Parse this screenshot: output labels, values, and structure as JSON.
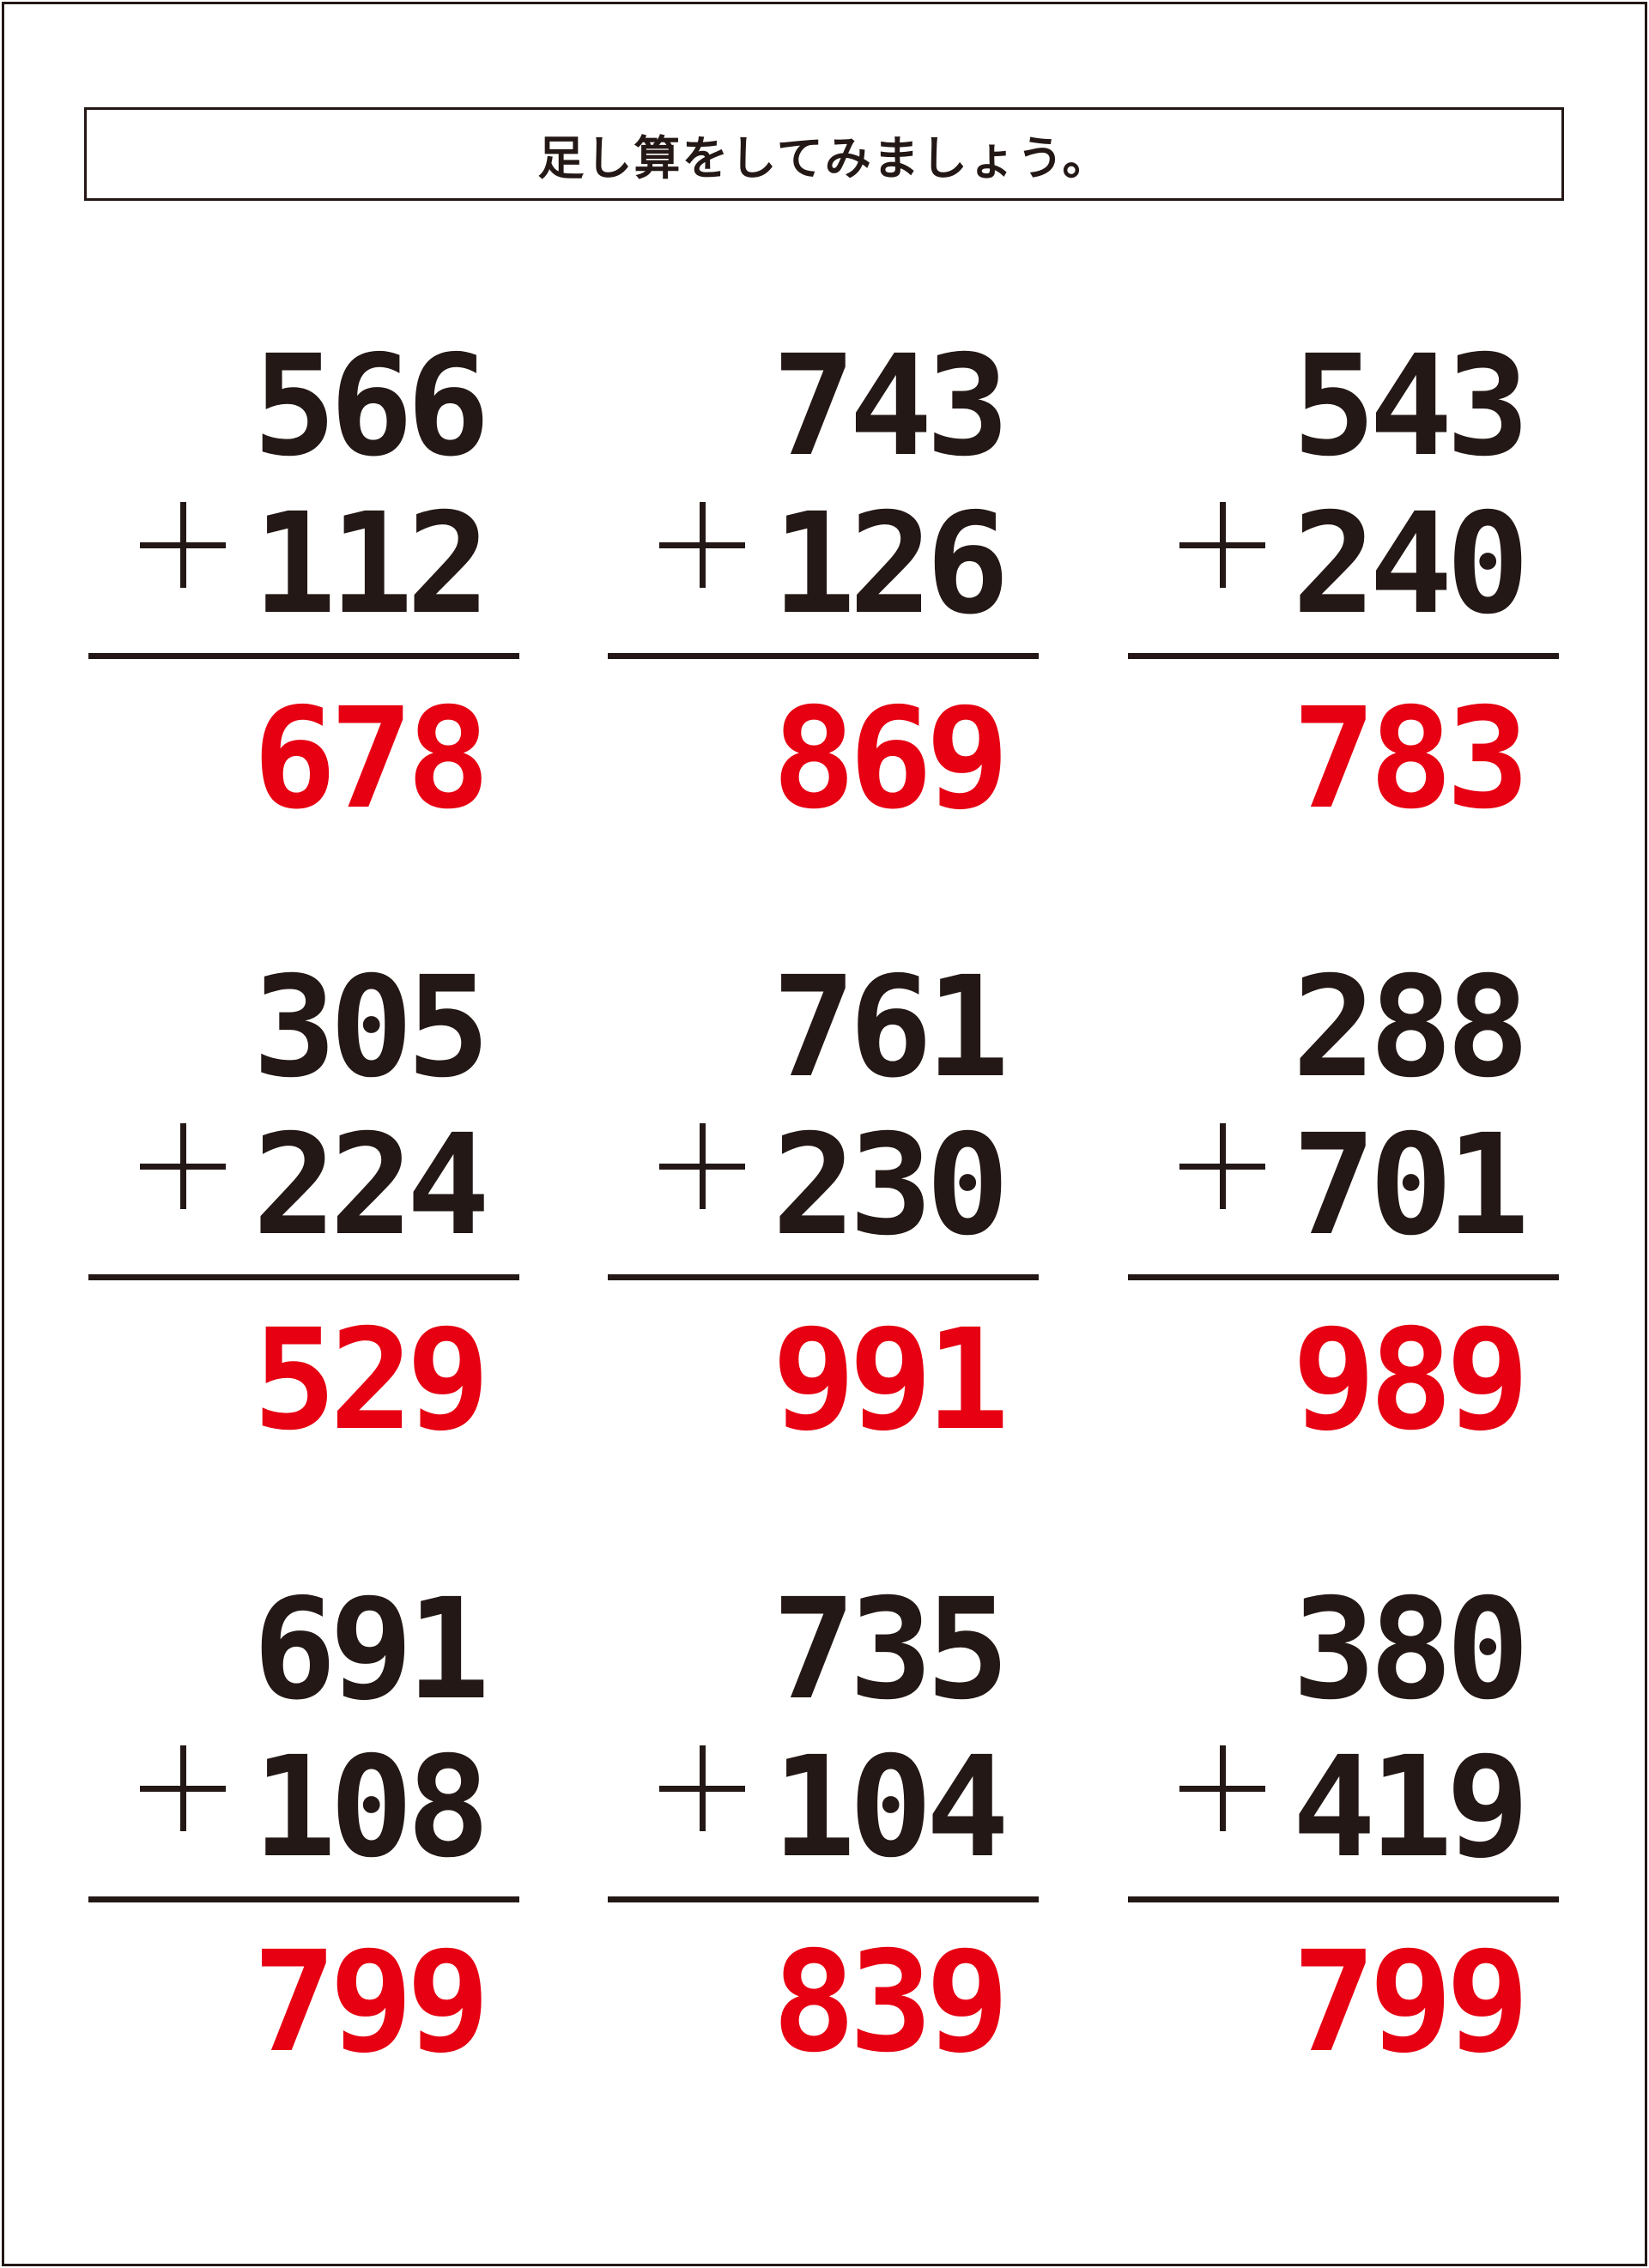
{
  "title": "足し算をしてみましょう。",
  "operator": "+",
  "colors": {
    "text": "#231815",
    "answer": "#e60012"
  },
  "problems": [
    {
      "a": "566",
      "b": "112",
      "answer": "678"
    },
    {
      "a": "743",
      "b": "126",
      "answer": "869"
    },
    {
      "a": "543",
      "b": "240",
      "answer": "783"
    },
    {
      "a": "305",
      "b": "224",
      "answer": "529"
    },
    {
      "a": "761",
      "b": "230",
      "answer": "991"
    },
    {
      "a": "288",
      "b": "701",
      "answer": "989"
    },
    {
      "a": "691",
      "b": "108",
      "answer": "799"
    },
    {
      "a": "735",
      "b": "104",
      "answer": "839"
    },
    {
      "a": "380",
      "b": "419",
      "answer": "799"
    }
  ]
}
